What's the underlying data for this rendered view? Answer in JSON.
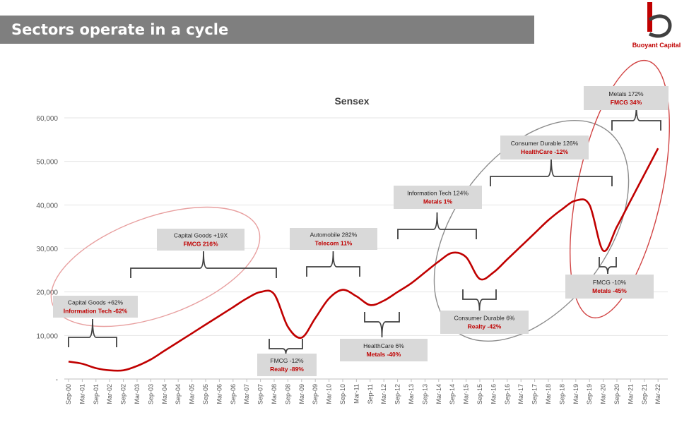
{
  "header": {
    "title": "Sectors operate in a cycle",
    "brand": "Buoyant Capital"
  },
  "colors": {
    "accent": "#c00000",
    "title_bar": "#7f7f7f",
    "annotation_box": "#d9d9d9",
    "ellipse_pink": "#e8a0a0",
    "ellipse_grey": "#8c8c8c",
    "ellipse_red": "#d14343"
  },
  "chart_data": {
    "type": "line",
    "title": "Sensex",
    "xlabel": "",
    "ylabel": "",
    "ylim": [
      0,
      60000
    ],
    "yticks": [
      "-",
      "10,000",
      "20,000",
      "30,000",
      "40,000",
      "50,000",
      "60,000"
    ],
    "grid": true,
    "categories": [
      "Sep-00",
      "Mar-01",
      "Sep-01",
      "Mar-02",
      "Sep-02",
      "Mar-03",
      "Sep-03",
      "Mar-04",
      "Sep-04",
      "Mar-05",
      "Sep-05",
      "Mar-06",
      "Sep-06",
      "Mar-07",
      "Sep-07",
      "Mar-08",
      "Sep-08",
      "Mar-09",
      "Sep-09",
      "Mar-10",
      "Sep-10",
      "Mar-11",
      "Sep-11",
      "Mar-12",
      "Sep-12",
      "Mar-13",
      "Sep-13",
      "Mar-14",
      "Sep-14",
      "Mar-15",
      "Sep-15",
      "Mar-16",
      "Sep-16",
      "Mar-17",
      "Sep-17",
      "Mar-18",
      "Sep-18",
      "Mar-19",
      "Sep-19",
      "Mar-20",
      "Sep-20",
      "Mar-21",
      "Sep-21",
      "Mar-22"
    ],
    "series": [
      {
        "values": [
          4000,
          3500,
          2500,
          2000,
          2000,
          3000,
          4500,
          6500,
          8500,
          10500,
          12500,
          14500,
          16500,
          18500,
          20000,
          19500,
          12000,
          9500,
          14000,
          18500,
          20500,
          19000,
          17000,
          18000,
          20000,
          22000,
          24500,
          27000,
          29000,
          28000,
          23000,
          24500,
          27500,
          30500,
          33500,
          36500,
          39000,
          41000,
          40000,
          29500,
          35000,
          41000,
          47000,
          53000
        ]
      }
    ],
    "annotations": [
      {
        "lines": [
          "Capital Goods +62%",
          "Information Tech -62%"
        ]
      },
      {
        "lines": [
          "Capital Goods +19X",
          "FMCG 216%"
        ]
      },
      {
        "lines": [
          "FMCG -12%",
          "Realty -89%"
        ]
      },
      {
        "lines": [
          "Automobile 282%",
          "Telecom 11%"
        ]
      },
      {
        "lines": [
          "HealthCare 6%",
          "Metals -40%"
        ]
      },
      {
        "lines": [
          "Information Tech 124%",
          "Metals 1%"
        ]
      },
      {
        "lines": [
          "Consumer Durable 6%",
          "Realty -42%"
        ]
      },
      {
        "lines": [
          "Consumer Durable 126%",
          "HealthCare -12%"
        ]
      },
      {
        "lines": [
          "FMCG -10%",
          "Metals -45%"
        ]
      },
      {
        "lines": [
          "Metals 172%",
          "FMCG 34%"
        ]
      }
    ]
  }
}
